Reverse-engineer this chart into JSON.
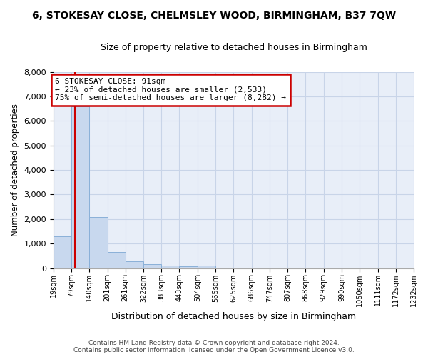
{
  "title": "6, STOKESAY CLOSE, CHELMSLEY WOOD, BIRMINGHAM, B37 7QW",
  "subtitle": "Size of property relative to detached houses in Birmingham",
  "xlabel": "Distribution of detached houses by size in Birmingham",
  "ylabel": "Number of detached properties",
  "footer_line1": "Contains HM Land Registry data © Crown copyright and database right 2024.",
  "footer_line2": "Contains public sector information licensed under the Open Government Licence v3.0.",
  "property_size": 91,
  "annotation_title": "6 STOKESAY CLOSE: 91sqm",
  "annotation_line1": "← 23% of detached houses are smaller (2,533)",
  "annotation_line2": "75% of semi-detached houses are larger (8,282) →",
  "bin_edges": [
    19,
    79,
    140,
    201,
    261,
    322,
    383,
    443,
    504,
    565,
    625,
    686,
    747,
    807,
    868,
    929,
    990,
    1050,
    1111,
    1172,
    1232
  ],
  "bar_heights": [
    1300,
    6600,
    2080,
    660,
    290,
    150,
    100,
    60,
    90,
    0,
    0,
    0,
    0,
    0,
    0,
    0,
    0,
    0,
    0,
    0
  ],
  "bar_color": "#c8d8ee",
  "bar_edge_color": "#8ab0d8",
  "vline_color": "#cc0000",
  "annotation_box_color": "#cc0000",
  "grid_color": "#c8d4e8",
  "bg_plot": "#e8eef8",
  "bg_fig": "#ffffff",
  "ylim": [
    0,
    8000
  ],
  "yticks": [
    0,
    1000,
    2000,
    3000,
    4000,
    5000,
    6000,
    7000,
    8000
  ]
}
